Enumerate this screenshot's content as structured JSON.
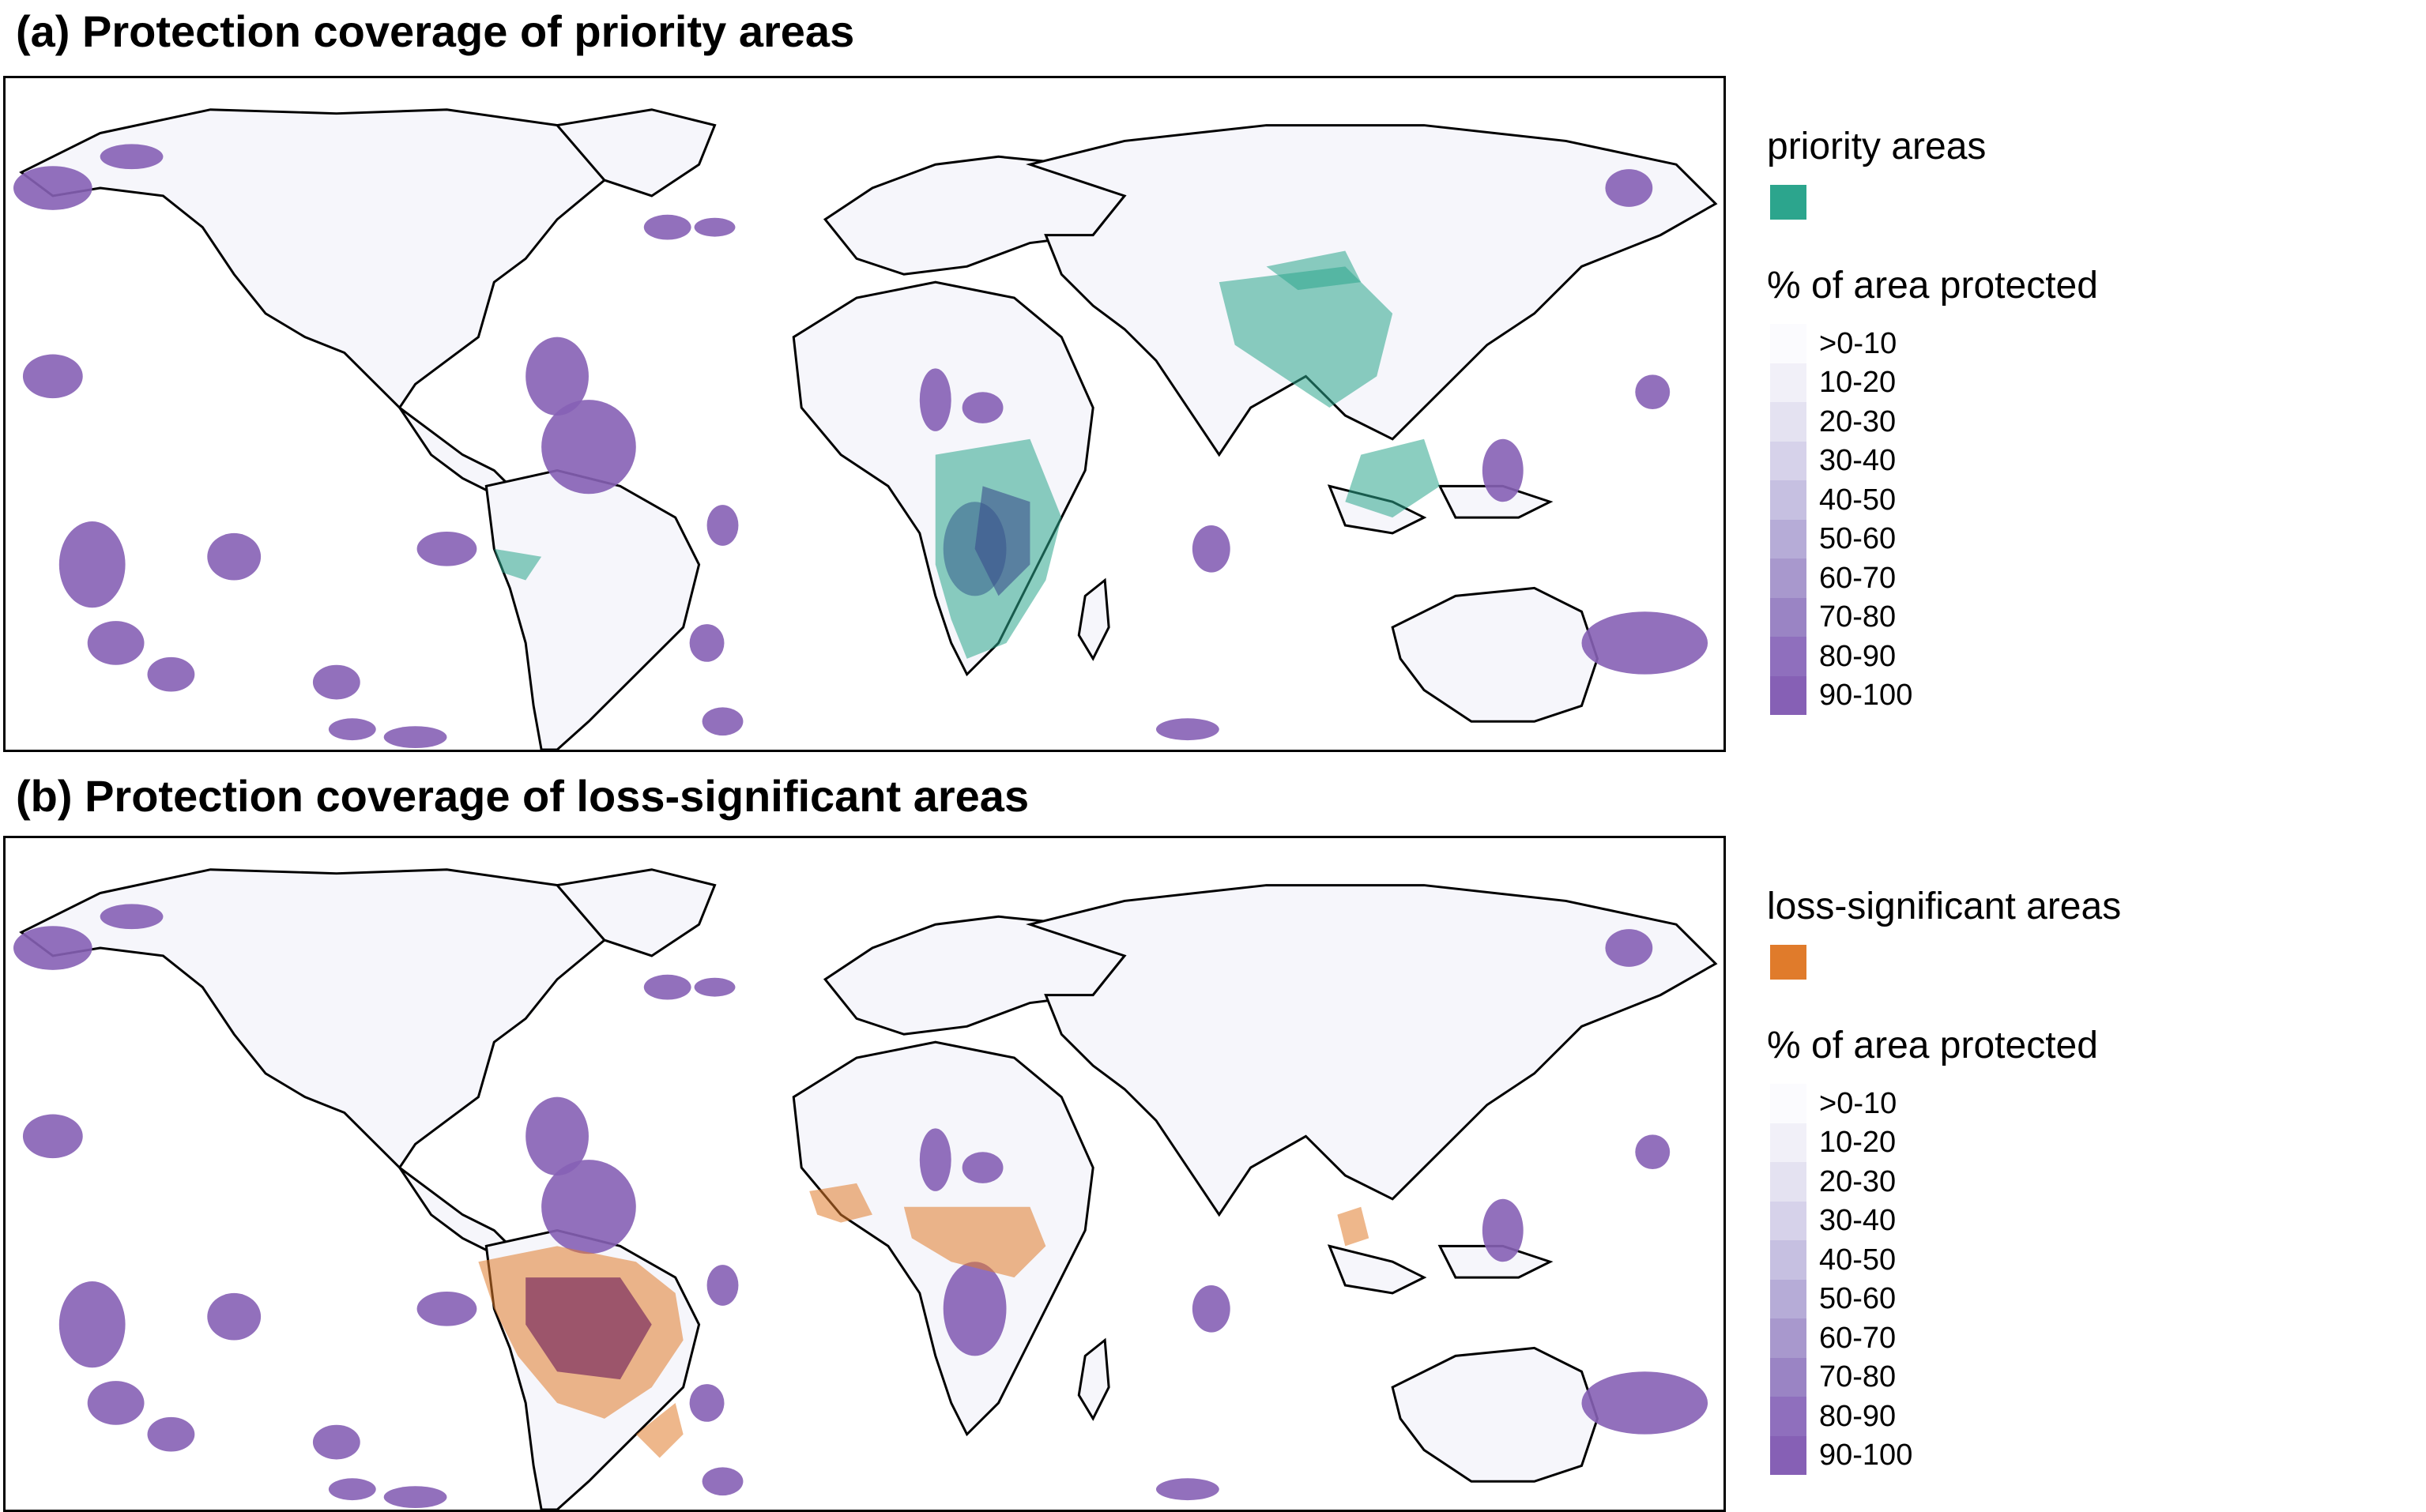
{
  "panels": [
    {
      "title": "(a) Protection coverage of priority areas",
      "highlight_legend": "priority areas",
      "highlight_color": "#2ca58d",
      "scale_title": "% of area protected"
    },
    {
      "title": "(b) Protection coverage of loss-significant areas",
      "highlight_legend": "loss-significant areas",
      "highlight_color": "#e07b2b",
      "scale_title": "% of area protected"
    }
  ],
  "scale_classes": [
    {
      "label": ">0-10",
      "color": "#fbfbfe"
    },
    {
      "label": "10-20",
      "color": "#f1f0f8"
    },
    {
      "label": "20-30",
      "color": "#e4e2f1"
    },
    {
      "label": "30-40",
      "color": "#d6d2ea"
    },
    {
      "label": "40-50",
      "color": "#c6c0e1"
    },
    {
      "label": "50-60",
      "color": "#b6acd7"
    },
    {
      "label": "60-70",
      "color": "#a898cd"
    },
    {
      "label": "70-80",
      "color": "#9a84c4"
    },
    {
      "label": "80-90",
      "color": "#8f6fbd"
    },
    {
      "label": "90-100",
      "color": "#8660b5"
    }
  ]
}
